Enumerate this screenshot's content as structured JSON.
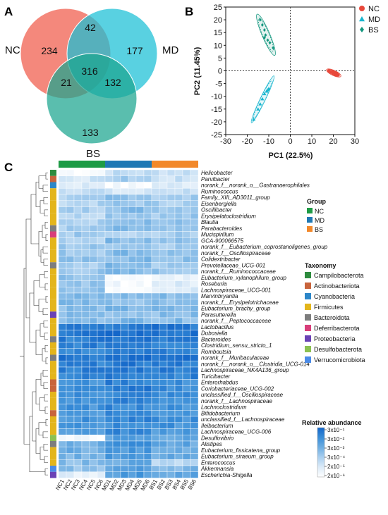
{
  "panels": {
    "a": "A",
    "b": "B",
    "c": "C"
  },
  "venn": {
    "sets": [
      {
        "name": "NC",
        "color": "#F05A4A"
      },
      {
        "name": "MD",
        "color": "#19BFD6"
      },
      {
        "name": "BS",
        "color": "#1BA58F"
      }
    ],
    "counts": {
      "nc": "234",
      "md": "177",
      "bs": "133",
      "nc_md": "42",
      "nc_bs": "21",
      "md_bs": "132",
      "all": "316"
    }
  },
  "chart_data": [
    {
      "type": "scatter",
      "title": "",
      "xlabel": "PC1 (22.5%)",
      "ylabel": "PC2 (11.45%)",
      "xlim": [
        -30,
        30
      ],
      "ylim": [
        -25,
        25
      ],
      "xticks": [
        "-30",
        "-20",
        "-10",
        "0",
        "10",
        "20",
        "30"
      ],
      "yticks": [
        "25",
        "20",
        "15",
        "10",
        "5",
        "0",
        "-5",
        "-10",
        "-15",
        "-20",
        "-25"
      ],
      "grid": false,
      "legend_position": "top-right",
      "series": [
        {
          "name": "NC",
          "color": "#E8483A",
          "marker": "circle",
          "points": [
            [
              18,
              0
            ],
            [
              19,
              -0.5
            ],
            [
              20,
              -1
            ],
            [
              21,
              -1.5
            ],
            [
              21.5,
              -1
            ],
            [
              20.5,
              -0.8
            ],
            [
              22,
              -1.6
            ],
            [
              19.5,
              -0.3
            ]
          ]
        },
        {
          "name": "MD",
          "color": "#19B6CF",
          "marker": "triangle",
          "points": [
            [
              -10,
              -7
            ],
            [
              -11,
              -8
            ],
            [
              -12,
              -9
            ],
            [
              -13,
              -11
            ],
            [
              -14,
              -13
            ],
            [
              -15,
              -15
            ],
            [
              -17,
              -19
            ],
            [
              -10.5,
              -7.5
            ]
          ]
        },
        {
          "name": "BS",
          "color": "#14977F",
          "marker": "diamond",
          "points": [
            [
              -14,
              20
            ],
            [
              -13,
              18
            ],
            [
              -12,
              16
            ],
            [
              -11.5,
              14
            ],
            [
              -10.5,
              12
            ],
            [
              -9.5,
              11
            ],
            [
              -8,
              9
            ],
            [
              -12,
              13
            ]
          ]
        }
      ]
    },
    {
      "type": "heatmap",
      "title": "",
      "samples": [
        "NC1",
        "NC2",
        "NC3",
        "NC4",
        "NC5",
        "NC6",
        "MD1",
        "MD2",
        "MD3",
        "MD4",
        "MD5",
        "MD6",
        "BS1",
        "BS2",
        "BS3",
        "BS4",
        "BS5",
        "BS6"
      ],
      "group_colors": {
        "NC": "#1E9B45",
        "MD": "#1F78B4",
        "BS": "#F2882A"
      },
      "sample_groups": [
        "NC",
        "NC",
        "NC",
        "NC",
        "NC",
        "NC",
        "MD",
        "MD",
        "MD",
        "MD",
        "MD",
        "MD",
        "BS",
        "BS",
        "BS",
        "BS",
        "BS",
        "BS"
      ],
      "genera": [
        "Helicobacter",
        "Parvibacter",
        "norank_f__norank_o__Gastranaerophilales",
        "Ruminococcus",
        "Family_XIII_AD3011_group",
        "Eisenbergiella",
        "Oscillibacter",
        "Erysipelatoclostridium",
        "Blautia",
        "Parabacteroides",
        "Mucispirillum",
        "GCA-900066575",
        "norank_f__Eubacterium_coprostanoligenes_group",
        "norank_f__Oscillospiraceae",
        "Colidextribacter",
        "Prevotellaceae_UCG-001",
        "norank_f__Ruminococcaceae",
        "Eubacterium_xylanophilum_group",
        "Roseburia",
        "Lachnospiraceae_UCG-001",
        "Marvinbryantia",
        "norank_f__Erysipelotrichaceae",
        "Eubacterium_brachy_group",
        "Parasutterella",
        "norank_f__Peptococcaceae",
        "Lactobacillus",
        "Dubosiella",
        "Bacteroides",
        "Clostridium_sensu_stricto_1",
        "Romboutsia",
        "norank_f__Muribaculaceae",
        "norank_f__norank_o__Clostridia_UCG-014",
        "Lachnospiraceae_NK4A136_group",
        "Turicibacter",
        "Enterorhabdus",
        "Coriobacteriaceae_UCG-002",
        "unclassified_f__Oscillospiraceae",
        "norank_f__Lachnospiraceae",
        "Lachnoclostridium",
        "Bifidobacterium",
        "unclassified_f__Lachnospiraceae",
        "Ileibacterium",
        "Lachnospiraceae_UCG-006",
        "Desulfovibrio",
        "Alistipes",
        "Eubacterium_fissicatena_group",
        "Eubacterium_siraeum_group",
        "Enterococcus",
        "Akkermansia",
        "Escherichia-Shigella"
      ],
      "phylum": [
        "Campilobacterota",
        "Actinobacteriota",
        "Cyanobacteria",
        "Firmicutes",
        "Firmicutes",
        "Firmicutes",
        "Firmicutes",
        "Firmicutes",
        "Firmicutes",
        "Bacteroidota",
        "Deferribacterota",
        "Firmicutes",
        "Firmicutes",
        "Firmicutes",
        "Firmicutes",
        "Bacteroidota",
        "Firmicutes",
        "Firmicutes",
        "Firmicutes",
        "Firmicutes",
        "Firmicutes",
        "Firmicutes",
        "Firmicutes",
        "Proteobacteria",
        "Firmicutes",
        "Firmicutes",
        "Firmicutes",
        "Bacteroidota",
        "Firmicutes",
        "Firmicutes",
        "Bacteroidota",
        "Firmicutes",
        "Firmicutes",
        "Firmicutes",
        "Actinobacteriota",
        "Actinobacteriota",
        "Firmicutes",
        "Firmicutes",
        "Firmicutes",
        "Actinobacteriota",
        "Firmicutes",
        "Firmicutes",
        "Firmicutes",
        "Desulfobacterota",
        "Bacteroidota",
        "Firmicutes",
        "Firmicutes",
        "Firmicutes",
        "Verrucomicrobiota",
        "Proteobacteria"
      ],
      "colorbar_label": "Relative abundance",
      "colorbar_ticks": [
        "3x10⁻¹",
        "3x10⁻²",
        "3x10⁻³",
        "3x10⁻⁴",
        "2x10⁻⁵",
        "2x10⁻⁶"
      ],
      "color_scale": [
        "#FFFFFF",
        "#DCEBF8",
        "#A9CFEF",
        "#6EAEE2",
        "#3A8ED8",
        "#1366C9"
      ]
    }
  ],
  "legend": {
    "group_title": "Group",
    "groups": [
      {
        "name": "NC",
        "color": "#1E9B45"
      },
      {
        "name": "MD",
        "color": "#1F78B4"
      },
      {
        "name": "BS",
        "color": "#F2882A"
      }
    ],
    "taxonomy_title": "Taxonomy",
    "taxa": [
      {
        "name": "Campilobacterota",
        "color": "#2E8B3E"
      },
      {
        "name": "Actinobacteriota",
        "color": "#C8643C"
      },
      {
        "name": "Cyanobacteria",
        "color": "#2C86C8"
      },
      {
        "name": "Firmicutes",
        "color": "#E3B51C"
      },
      {
        "name": "Bacteroidota",
        "color": "#7D7D7D"
      },
      {
        "name": "Deferribacterota",
        "color": "#D83E7A"
      },
      {
        "name": "Proteobacteria",
        "color": "#6A42B5"
      },
      {
        "name": "Desulfobacterota",
        "color": "#8CC152"
      },
      {
        "name": "Verrucomicrobiota",
        "color": "#4A8BE8"
      }
    ]
  }
}
